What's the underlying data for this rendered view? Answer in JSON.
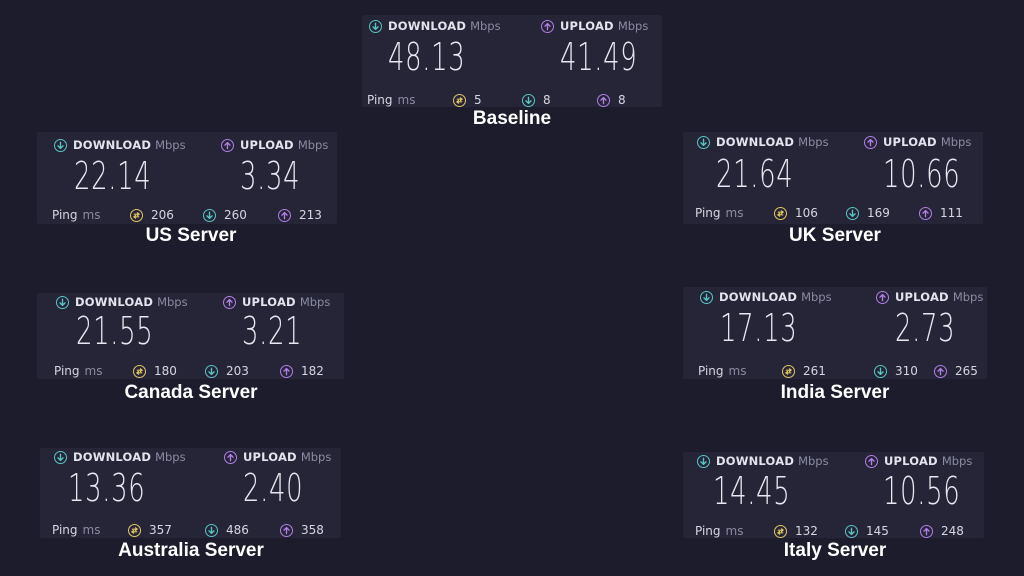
{
  "labels": {
    "download": "DOWNLOAD",
    "upload": "UPLOAD",
    "mbps": "Mbps",
    "ping": "Ping",
    "ms": "ms"
  },
  "colors": {
    "background": "#1c1c2c",
    "card": "#252537",
    "download_icon": "#58c6c4",
    "upload_icon": "#b17fe6",
    "jitter_icon": "#e2c760"
  },
  "icons": {
    "download": "arrow-down-circle-icon",
    "upload": "arrow-up-circle-icon",
    "jitter": "jitter-icon"
  },
  "results": [
    {
      "name": "Baseline",
      "download": "48.13",
      "upload": "41.49",
      "jitter": "5",
      "ping_down": "8",
      "ping_up": "8"
    },
    {
      "name": "US Server",
      "download": "22.14",
      "upload": "3.34",
      "jitter": "206",
      "ping_down": "260",
      "ping_up": "213"
    },
    {
      "name": "UK Server",
      "download": "21.64",
      "upload": "10.66",
      "jitter": "106",
      "ping_down": "169",
      "ping_up": "111"
    },
    {
      "name": "Canada Server",
      "download": "21.55",
      "upload": "3.21",
      "jitter": "180",
      "ping_down": "203",
      "ping_up": "182"
    },
    {
      "name": "India Server",
      "download": "17.13",
      "upload": "2.73",
      "jitter": "261",
      "ping_down": "310",
      "ping_up": "265"
    },
    {
      "name": "Australia Server",
      "download": "13.36",
      "upload": "2.40",
      "jitter": "357",
      "ping_down": "486",
      "ping_up": "358"
    },
    {
      "name": "Italy Server",
      "download": "14.45",
      "upload": "10.56",
      "jitter": "132",
      "ping_down": "145",
      "ping_up": "248"
    }
  ]
}
